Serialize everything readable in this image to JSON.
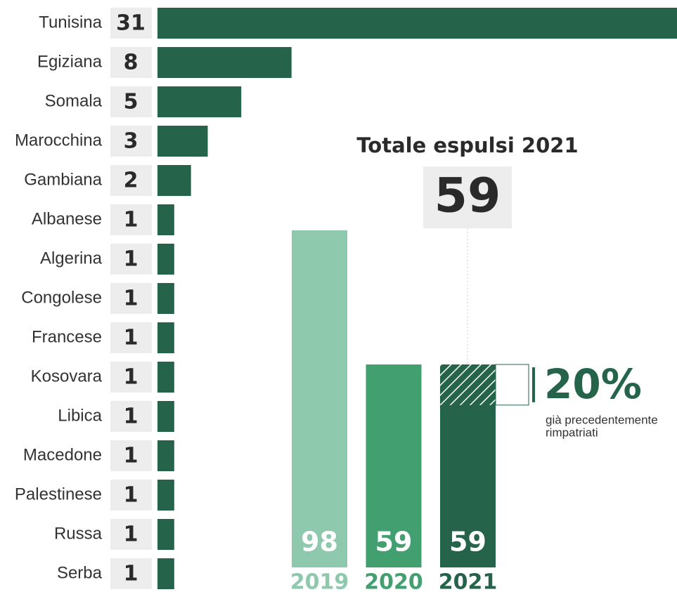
{
  "chart_data": [
    {
      "type": "hbar",
      "color": "#25634a",
      "categories": [
        "Tunisina",
        "Egiziana",
        "Somala",
        "Marocchina",
        "Gambiana",
        "Albanese",
        "Algerina",
        "Congolese",
        "Francese",
        "Kosovara",
        "Libica",
        "Macedone",
        "Palestinese",
        "Russa",
        "Serba"
      ],
      "values": [
        31,
        8,
        5,
        3,
        2,
        1,
        1,
        1,
        1,
        1,
        1,
        1,
        1,
        1,
        1
      ]
    },
    {
      "type": "vbar",
      "categories": [
        "2019",
        "2020",
        "2021"
      ],
      "values": [
        98,
        59,
        59
      ],
      "colors": [
        "#8fc9ad",
        "#42a070",
        "#25634a"
      ],
      "total_title": "Totale espulsi 2021",
      "total": 59,
      "share": {
        "value": 20,
        "label": "20%"
      },
      "share_note": [
        "già precedentemente",
        "rimpatriati"
      ]
    }
  ]
}
